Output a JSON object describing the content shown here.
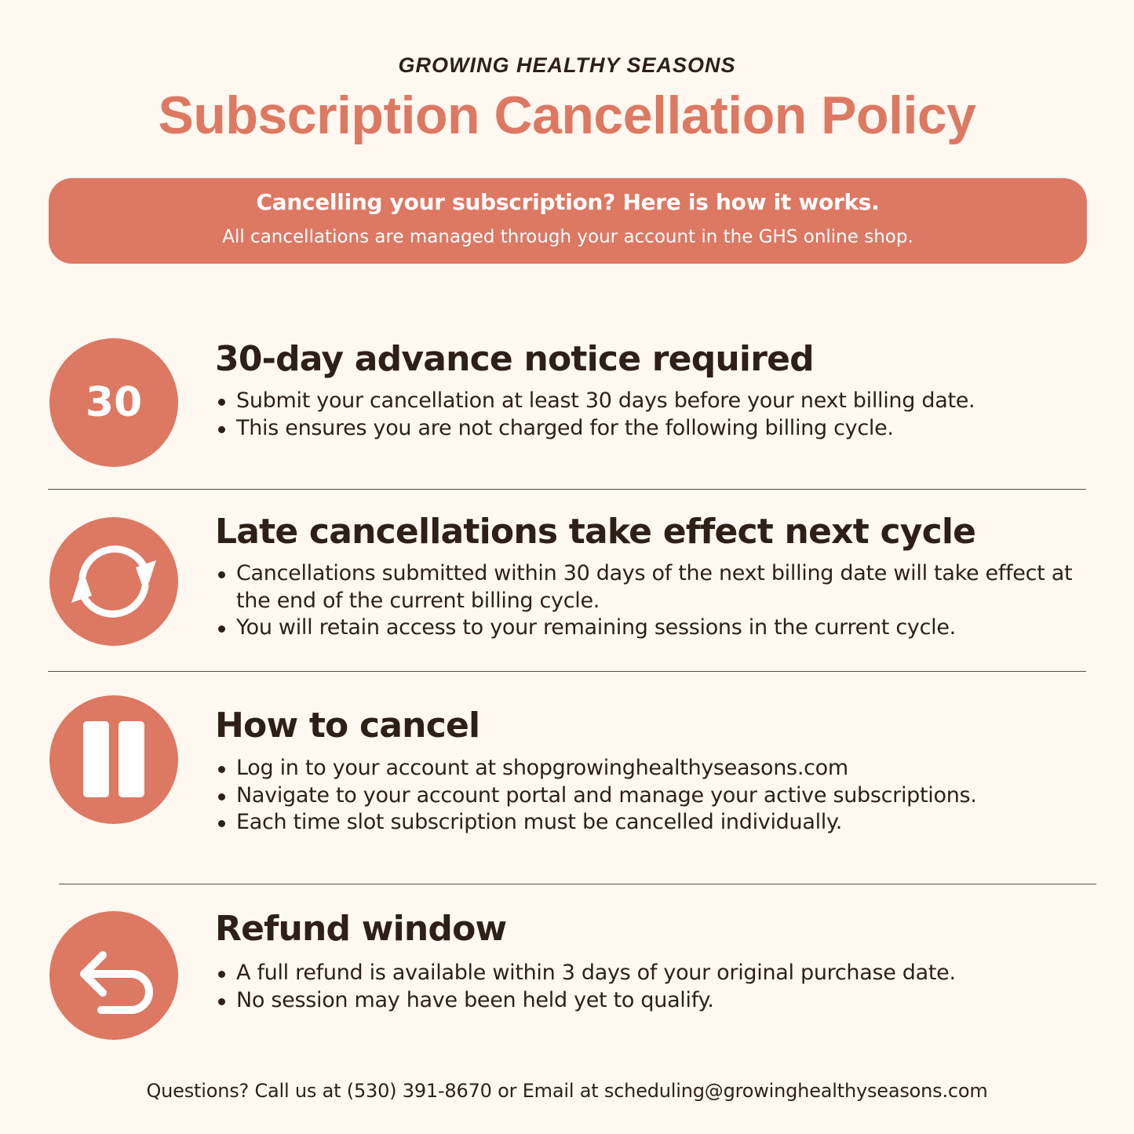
{
  "header": {
    "brand": "GROWING HEALTHY SEASONS",
    "title": "Subscription Cancellation Policy"
  },
  "banner": {
    "heading": "Cancelling your subscription? Here is how it works.",
    "subtext": "All cancellations are managed through your account in the GHS online shop."
  },
  "colors": {
    "accent": "#dd7862",
    "background": "#fef8f0",
    "text": "#2e1f17"
  },
  "sections": [
    {
      "icon": "number-30-badge",
      "icon_text": "30",
      "title": "30-day advance notice required",
      "bullets": [
        "Submit your cancellation at least 30 days before your next billing date.",
        "This ensures you are not charged for the following billing cycle."
      ]
    },
    {
      "icon": "refresh-cycle-icon",
      "title": "Late cancellations take effect next cycle",
      "bullets": [
        "Cancellations submitted within 30 days of the next billing date will take effect at the end of the current billing cycle.",
        "You will retain access to your remaining sessions in the current cycle."
      ]
    },
    {
      "icon": "pause-icon",
      "title": "How to cancel",
      "bullets": [
        "Log in to your account at shopgrowinghealthyseasons.com",
        "Navigate to your account portal and manage your active subscriptions.",
        "Each time slot subscription must be cancelled individually."
      ]
    },
    {
      "icon": "undo-return-icon",
      "title": "Refund window",
      "bullets": [
        "A full refund is available within 3 days of your original purchase date.",
        "No session may have been held yet to qualify."
      ]
    }
  ],
  "footer": {
    "text": "Questions? Call  us at (530) 391-8670  or Email at scheduling@growinghealthyseasons.com"
  }
}
